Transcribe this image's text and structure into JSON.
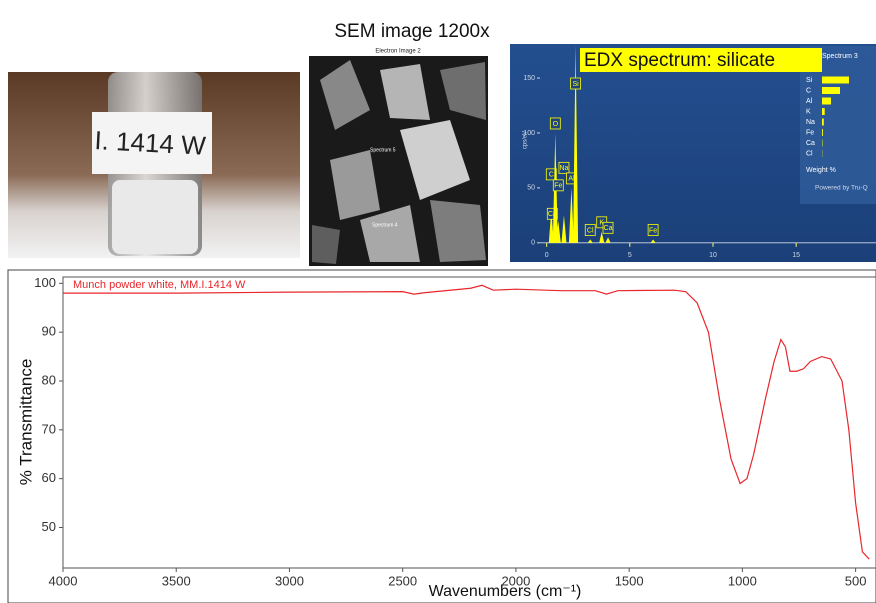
{
  "images": {
    "vial_label": "I. 1414 W",
    "sem_title": "SEM image 1200x",
    "sem_caption": "Electron Image 2",
    "sem_spectra": [
      "Spectrum 5",
      "Spectrum 4"
    ]
  },
  "chart_data": [
    {
      "type": "line",
      "ylabel": "% Transmittance",
      "xlabel": "Wavenumbers (cm⁻¹)",
      "xlim": [
        4000,
        410
      ],
      "ylim": [
        41.7,
        101.3
      ],
      "xticks": [
        4000,
        3500,
        3000,
        2500,
        2000,
        1500,
        1000,
        500
      ],
      "yticks": [
        50,
        60,
        70,
        80,
        90,
        100
      ],
      "series": [
        {
          "name": "Munch powder white, MM.I.1414 W",
          "color": "#e8262b",
          "x": [
            4000,
            3500,
            3000,
            2500,
            2450,
            2400,
            2200,
            2150,
            2100,
            2000,
            1800,
            1650,
            1600,
            1550,
            1300,
            1250,
            1200,
            1150,
            1100,
            1050,
            1010,
            980,
            950,
            900,
            860,
            830,
            810,
            790,
            760,
            730,
            700,
            650,
            610,
            560,
            530,
            500,
            470,
            440
          ],
          "values": [
            98,
            98,
            98.2,
            98.3,
            97.8,
            98.1,
            99,
            99.6,
            98.6,
            98.8,
            98.5,
            98.5,
            97.8,
            98.5,
            98.6,
            98.3,
            96,
            90,
            76,
            64,
            59,
            60,
            65,
            76,
            84,
            88.5,
            87,
            82,
            82,
            82.5,
            84,
            85,
            84.5,
            80,
            70,
            55,
            45,
            43.5
          ]
        }
      ]
    },
    {
      "type": "spectrum",
      "title": "EDX spectrum: silicate",
      "ylabel": "cps/eV",
      "xlim": [
        -0.4,
        19.8
      ],
      "ylim": [
        -2,
        181
      ],
      "xticks": [
        0,
        5,
        10,
        15
      ],
      "yticks": [
        0,
        50,
        100,
        150
      ],
      "color": "#ffff00",
      "x": [
        0.28,
        0.34,
        0.52,
        0.7,
        1.04,
        1.49,
        1.74,
        2.62,
        3.31,
        3.69,
        6.4
      ],
      "values": [
        30,
        5,
        100,
        20,
        25,
        50,
        180,
        3,
        10,
        5,
        3
      ],
      "labels": [
        "C",
        "Ca",
        "O",
        "Fe",
        "Na",
        "Al",
        "Si",
        "Cl",
        "K",
        "Ca",
        "Fe"
      ],
      "legend_title": "Spectrum 3",
      "composition": {
        "categories": [
          "Si",
          "C",
          "Al",
          "K",
          "Na",
          "Fe",
          "Ca",
          "Cl"
        ],
        "values": [
          30,
          20,
          10,
          3,
          2,
          1,
          0.5,
          0.3
        ],
        "label": "Weight %"
      },
      "footer": "Powered by Tru-Q"
    }
  ]
}
